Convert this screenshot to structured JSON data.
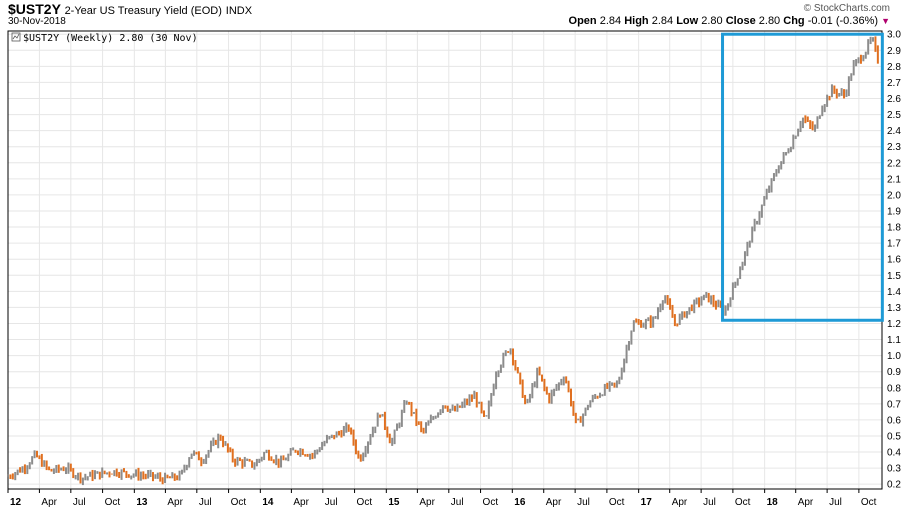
{
  "header": {
    "symbol": "$UST2Y",
    "description": "2-Year US Treasury Yield (EOD)",
    "exchange": "INDX",
    "date": "30-Nov-2018",
    "brand": "© StockCharts.com",
    "open_label": "Open",
    "open": "2.84",
    "high_label": "High",
    "high": "2.84",
    "low_label": "Low",
    "low": "2.80",
    "close_label": "Close",
    "close": "2.80",
    "chg_label": "Chg",
    "chg": "-0.01 (-0.36%)",
    "legend": "$UST2Y (Weekly) 2.80 (30 Nov)"
  },
  "colors": {
    "up": "#8c8c8c",
    "down": "#e07020",
    "grid": "#e6e6e6",
    "highlight": "#1e9ad6"
  },
  "chart_data": {
    "type": "line",
    "title": "",
    "xlabel": "",
    "ylabel": "",
    "y_ticks": [
      0.2,
      0.3,
      0.4,
      0.5,
      0.6,
      0.7,
      0.8,
      0.9,
      1.0,
      1.1,
      1.2,
      1.3,
      1.4,
      1.5,
      1.6,
      1.7,
      1.8,
      1.9,
      2.0,
      2.1,
      2.2,
      2.3,
      2.4,
      2.5,
      2.6,
      2.7,
      2.8,
      2.9,
      3.0
    ],
    "ylim": [
      0.17,
      3.02
    ],
    "xlim": [
      "2012-01-01",
      "2018-12-07"
    ],
    "x_ticks": [
      {
        "date": "2012-01-01",
        "label": "12",
        "year": true
      },
      {
        "date": "2012-04-01",
        "label": "Apr"
      },
      {
        "date": "2012-07-01",
        "label": "Jul"
      },
      {
        "date": "2012-10-01",
        "label": "Oct"
      },
      {
        "date": "2013-01-01",
        "label": "13",
        "year": true
      },
      {
        "date": "2013-04-01",
        "label": "Apr"
      },
      {
        "date": "2013-07-01",
        "label": "Jul"
      },
      {
        "date": "2013-10-01",
        "label": "Oct"
      },
      {
        "date": "2014-01-01",
        "label": "14",
        "year": true
      },
      {
        "date": "2014-04-01",
        "label": "Apr"
      },
      {
        "date": "2014-07-01",
        "label": "Jul"
      },
      {
        "date": "2014-10-01",
        "label": "Oct"
      },
      {
        "date": "2015-01-01",
        "label": "15",
        "year": true
      },
      {
        "date": "2015-04-01",
        "label": "Apr"
      },
      {
        "date": "2015-07-01",
        "label": "Jul"
      },
      {
        "date": "2015-10-01",
        "label": "Oct"
      },
      {
        "date": "2016-01-01",
        "label": "16",
        "year": true
      },
      {
        "date": "2016-04-01",
        "label": "Apr"
      },
      {
        "date": "2016-07-01",
        "label": "Jul"
      },
      {
        "date": "2016-10-01",
        "label": "Oct"
      },
      {
        "date": "2017-01-01",
        "label": "17",
        "year": true
      },
      {
        "date": "2017-04-01",
        "label": "Apr"
      },
      {
        "date": "2017-07-01",
        "label": "Jul"
      },
      {
        "date": "2017-10-01",
        "label": "Oct"
      },
      {
        "date": "2018-01-01",
        "label": "18",
        "year": true
      },
      {
        "date": "2018-04-01",
        "label": "Apr"
      },
      {
        "date": "2018-07-01",
        "label": "Jul"
      },
      {
        "date": "2018-10-01",
        "label": "Oct"
      }
    ],
    "series": [
      {
        "symbol": "$UST2Y",
        "points": [
          [
            "2012-01-01",
            0.25
          ],
          [
            "2012-02-15",
            0.3
          ],
          [
            "2012-03-20",
            0.38
          ],
          [
            "2012-05-01",
            0.28
          ],
          [
            "2012-06-15",
            0.3
          ],
          [
            "2012-08-01",
            0.24
          ],
          [
            "2012-09-15",
            0.26
          ],
          [
            "2012-11-01",
            0.28
          ],
          [
            "2013-01-01",
            0.26
          ],
          [
            "2013-02-15",
            0.25
          ],
          [
            "2013-04-01",
            0.23
          ],
          [
            "2013-05-15",
            0.25
          ],
          [
            "2013-06-15",
            0.4
          ],
          [
            "2013-07-15",
            0.35
          ],
          [
            "2013-09-05",
            0.5
          ],
          [
            "2013-10-15",
            0.35
          ],
          [
            "2013-12-15",
            0.32
          ],
          [
            "2014-01-15",
            0.4
          ],
          [
            "2014-03-01",
            0.33
          ],
          [
            "2014-04-15",
            0.42
          ],
          [
            "2014-06-01",
            0.38
          ],
          [
            "2014-07-15",
            0.48
          ],
          [
            "2014-09-15",
            0.55
          ],
          [
            "2014-10-15",
            0.35
          ],
          [
            "2014-12-15",
            0.65
          ],
          [
            "2015-01-15",
            0.45
          ],
          [
            "2015-03-01",
            0.72
          ],
          [
            "2015-04-15",
            0.52
          ],
          [
            "2015-06-15",
            0.7
          ],
          [
            "2015-07-15",
            0.65
          ],
          [
            "2015-09-15",
            0.75
          ],
          [
            "2015-10-15",
            0.58
          ],
          [
            "2015-11-15",
            0.9
          ],
          [
            "2015-12-25",
            1.06
          ],
          [
            "2016-02-10",
            0.68
          ],
          [
            "2016-03-15",
            0.9
          ],
          [
            "2016-04-15",
            0.73
          ],
          [
            "2016-06-01",
            0.88
          ],
          [
            "2016-07-05",
            0.56
          ],
          [
            "2016-08-15",
            0.72
          ],
          [
            "2016-10-01",
            0.8
          ],
          [
            "2016-11-01",
            0.82
          ],
          [
            "2016-12-15",
            1.2
          ],
          [
            "2017-01-15",
            1.2
          ],
          [
            "2017-02-15",
            1.22
          ],
          [
            "2017-03-15",
            1.38
          ],
          [
            "2017-04-15",
            1.2
          ],
          [
            "2017-06-01",
            1.3
          ],
          [
            "2017-07-15",
            1.37
          ],
          [
            "2017-09-07",
            1.27
          ],
          [
            "2017-10-15",
            1.5
          ],
          [
            "2017-12-01",
            1.8
          ],
          [
            "2018-01-15",
            2.05
          ],
          [
            "2018-02-15",
            2.2
          ],
          [
            "2018-03-15",
            2.3
          ],
          [
            "2018-04-20",
            2.48
          ],
          [
            "2018-05-25",
            2.4
          ],
          [
            "2018-06-15",
            2.55
          ],
          [
            "2018-07-15",
            2.65
          ],
          [
            "2018-08-20",
            2.62
          ],
          [
            "2018-09-15",
            2.8
          ],
          [
            "2018-10-15",
            2.88
          ],
          [
            "2018-11-08",
            2.97
          ],
          [
            "2018-11-30",
            2.8
          ]
        ]
      }
    ],
    "annotation": {
      "type": "rectangle",
      "x": [
        "2017-09-01",
        "2018-12-08"
      ],
      "y": [
        1.22,
        3.0
      ]
    }
  }
}
